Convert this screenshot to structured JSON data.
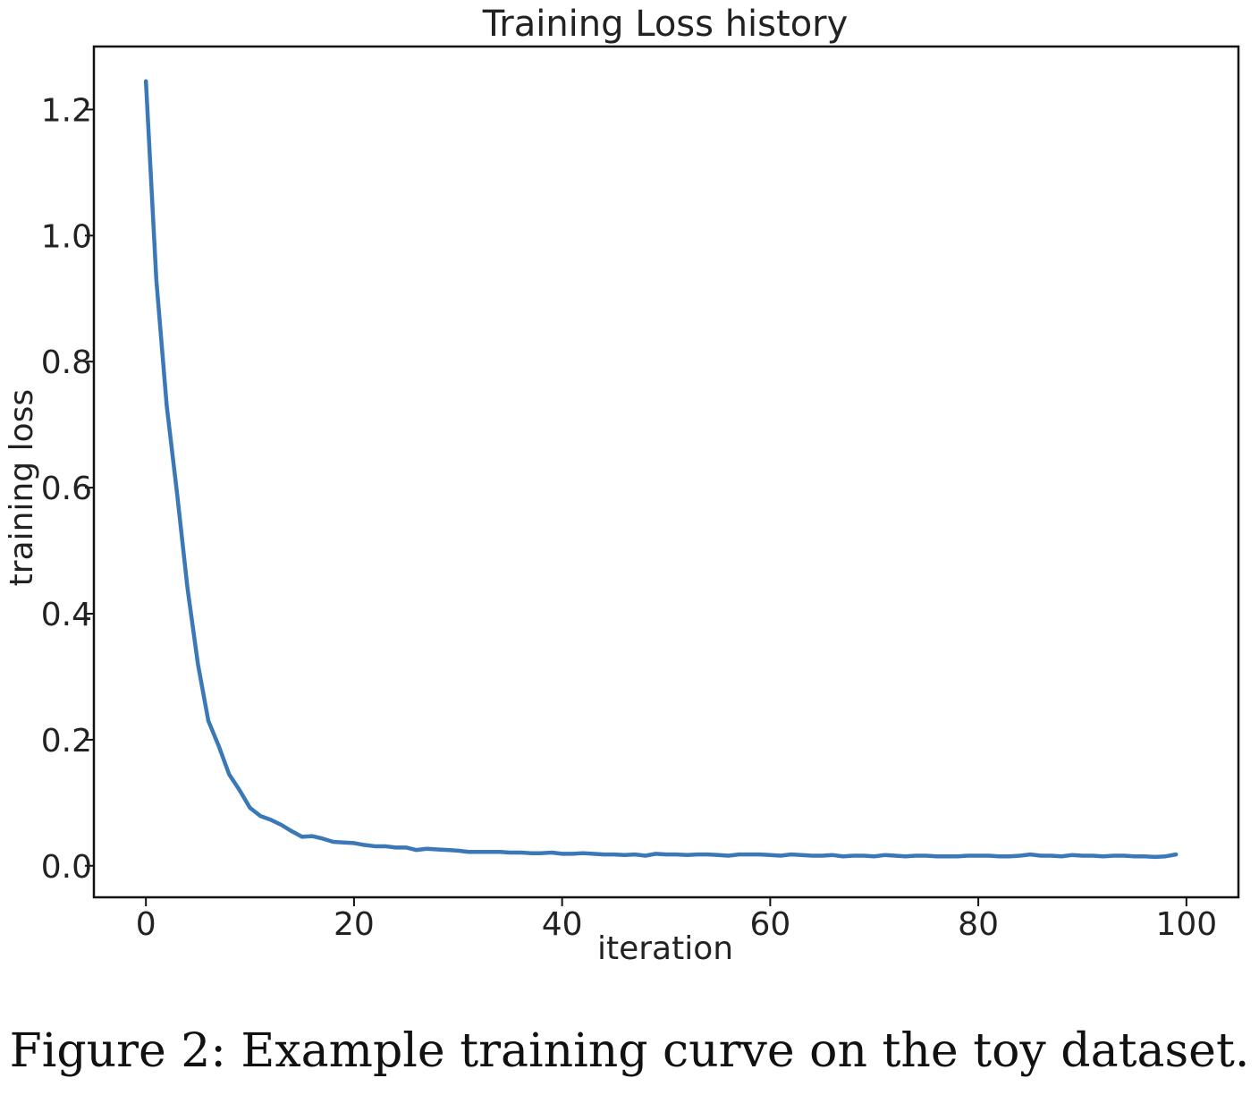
{
  "chart_data": {
    "type": "line",
    "title": "Training Loss history",
    "xlabel": "iteration",
    "ylabel": "training loss",
    "xlim": [
      -5,
      105
    ],
    "ylim": [
      -0.05,
      1.3
    ],
    "xticks": [
      0,
      20,
      40,
      60,
      80,
      100
    ],
    "xtick_labels": [
      "0",
      "20",
      "40",
      "60",
      "80",
      "100"
    ],
    "yticks": [
      0.0,
      0.2,
      0.4,
      0.6,
      0.8,
      1.0,
      1.2
    ],
    "ytick_labels": [
      "0.0",
      "0.2",
      "0.4",
      "0.6",
      "0.8",
      "1.0",
      "1.2"
    ],
    "grid": false,
    "series": [
      {
        "color": "#3a78b8",
        "x": [
          0,
          1,
          2,
          3,
          4,
          5,
          6,
          7,
          8,
          9,
          10,
          11,
          12,
          13,
          14,
          15,
          16,
          17,
          18,
          19,
          20,
          21,
          22,
          23,
          24,
          25,
          26,
          27,
          28,
          29,
          30,
          31,
          32,
          33,
          34,
          35,
          36,
          37,
          38,
          39,
          40,
          41,
          42,
          43,
          44,
          45,
          46,
          47,
          48,
          49,
          50,
          51,
          52,
          53,
          54,
          55,
          56,
          57,
          58,
          59,
          60,
          61,
          62,
          63,
          64,
          65,
          66,
          67,
          68,
          69,
          70,
          71,
          72,
          73,
          74,
          75,
          76,
          77,
          78,
          79,
          80,
          81,
          82,
          83,
          84,
          85,
          86,
          87,
          88,
          89,
          90,
          91,
          92,
          93,
          94,
          95,
          96,
          97,
          98,
          99
        ],
        "y": [
          1.245,
          0.93,
          0.73,
          0.59,
          0.44,
          0.32,
          0.23,
          0.19,
          0.145,
          0.12,
          0.092,
          0.079,
          0.073,
          0.065,
          0.055,
          0.046,
          0.047,
          0.043,
          0.038,
          0.037,
          0.036,
          0.033,
          0.031,
          0.031,
          0.029,
          0.029,
          0.025,
          0.027,
          0.026,
          0.025,
          0.024,
          0.022,
          0.022,
          0.022,
          0.022,
          0.021,
          0.021,
          0.02,
          0.02,
          0.021,
          0.019,
          0.019,
          0.02,
          0.019,
          0.018,
          0.018,
          0.017,
          0.018,
          0.016,
          0.019,
          0.018,
          0.018,
          0.017,
          0.018,
          0.018,
          0.017,
          0.016,
          0.018,
          0.018,
          0.018,
          0.017,
          0.016,
          0.018,
          0.017,
          0.016,
          0.016,
          0.017,
          0.015,
          0.016,
          0.016,
          0.015,
          0.017,
          0.016,
          0.015,
          0.016,
          0.016,
          0.015,
          0.015,
          0.015,
          0.016,
          0.016,
          0.016,
          0.015,
          0.015,
          0.016,
          0.018,
          0.016,
          0.016,
          0.015,
          0.017,
          0.016,
          0.016,
          0.015,
          0.016,
          0.016,
          0.015,
          0.015,
          0.014,
          0.015,
          0.018
        ]
      }
    ]
  },
  "caption": "Figure 2: Example training curve on the toy dataset."
}
